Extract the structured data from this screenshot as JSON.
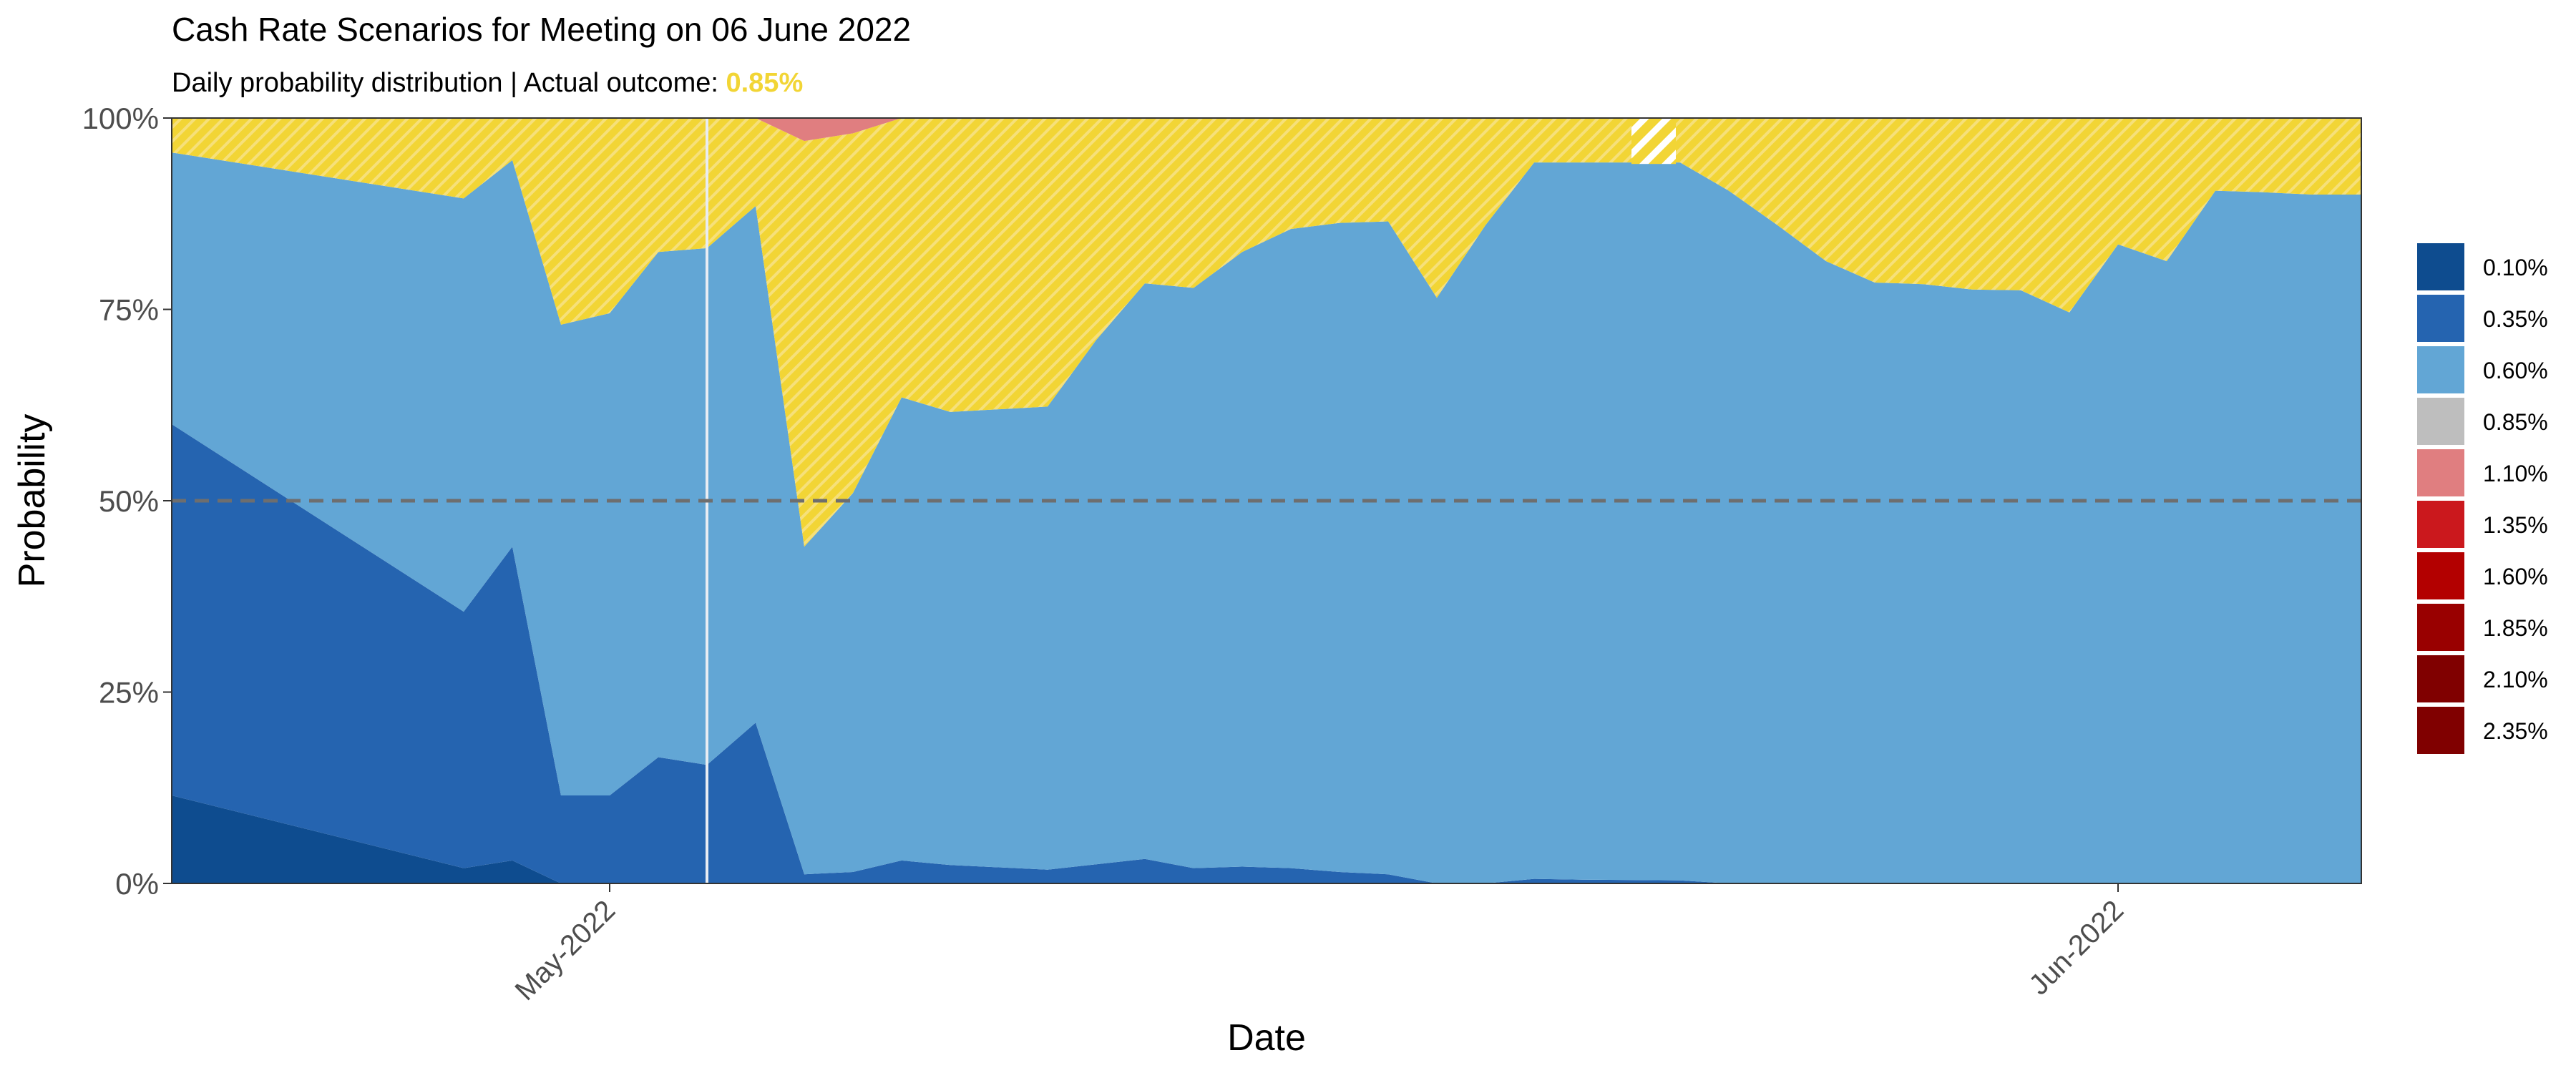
{
  "chart_data": {
    "type": "area",
    "stacked": true,
    "title": "Cash Rate Scenarios for Meeting on 06 June 2022",
    "subtitle_prefix": "Daily probability distribution | Actual outcome: ",
    "subtitle_highlight": "0.85%",
    "highlight_color": "#F2D535",
    "xlabel": "Date",
    "ylabel": "Probability",
    "ylim": [
      0,
      1
    ],
    "xlim": [
      "2022-04-22",
      "2022-06-06"
    ],
    "y_ticks": [
      {
        "value": 0,
        "label": "0%"
      },
      {
        "value": 0.25,
        "label": "25%"
      },
      {
        "value": 0.5,
        "label": "50%"
      },
      {
        "value": 0.75,
        "label": "75%"
      },
      {
        "value": 1,
        "label": "100%"
      }
    ],
    "x_ticks": [
      {
        "date": "2022-05-01",
        "label": "May-2022"
      },
      {
        "date": "2022-06-01",
        "label": "Jun-2022"
      }
    ],
    "reference_line_y": 0.5,
    "event_line_date": "2022-05-03",
    "legend_position": "right",
    "legend": [
      {
        "label": "0.10%",
        "color": "#0E4C8F"
      },
      {
        "label": "0.35%",
        "color": "#2564B0"
      },
      {
        "label": "0.60%",
        "color": "#62A6D5"
      },
      {
        "label": "0.85%",
        "color": "#BEBEBE"
      },
      {
        "label": "1.10%",
        "color": "#E07E80"
      },
      {
        "label": "1.35%",
        "color": "#CB181D"
      },
      {
        "label": "1.60%",
        "color": "#B30000"
      },
      {
        "label": "1.85%",
        "color": "#990000"
      },
      {
        "label": "2.10%",
        "color": "#800000"
      },
      {
        "label": "2.35%",
        "color": "#800000"
      }
    ],
    "dates": [
      "2022-04-22",
      "2022-04-28",
      "2022-04-29",
      "2022-04-30",
      "2022-05-01",
      "2022-05-02",
      "2022-05-03",
      "2022-05-04",
      "2022-05-05",
      "2022-05-06",
      "2022-05-07",
      "2022-05-08",
      "2022-05-10",
      "2022-05-11",
      "2022-05-12",
      "2022-05-13",
      "2022-05-14",
      "2022-05-15",
      "2022-05-16",
      "2022-05-17",
      "2022-05-18",
      "2022-05-19",
      "2022-05-20",
      "2022-05-21",
      "2022-05-23",
      "2022-05-24",
      "2022-05-25",
      "2022-05-26",
      "2022-05-27",
      "2022-05-28",
      "2022-05-29",
      "2022-05-30",
      "2022-05-31",
      "2022-06-01",
      "2022-06-02",
      "2022-06-03",
      "2022-06-04",
      "2022-06-05",
      "2022-06-06"
    ],
    "series": [
      {
        "name": "0.10%",
        "color": "#0E4C8F",
        "values": [
          0.115,
          0.02,
          0.03,
          0.0,
          0.0,
          0.0,
          0.0,
          0.0,
          0.0,
          0.0,
          0.0,
          0.0,
          0.0,
          0.0,
          0.0,
          0.0,
          0.0,
          0.0,
          0.0,
          0.0,
          0.0,
          0.0,
          0.0,
          0.0,
          0.0,
          0.0,
          0.0,
          0.0,
          0.0,
          0.0,
          0.0,
          0.0,
          0.0,
          0.0,
          0.0,
          0.0,
          0.0,
          0.0,
          0.0
        ]
      },
      {
        "name": "0.35%",
        "color": "#2564B0",
        "values": [
          0.485,
          0.335,
          0.41,
          0.115,
          0.115,
          0.165,
          0.155,
          0.21,
          0.012,
          0.015,
          0.03,
          0.024,
          0.018,
          0.025,
          0.032,
          0.02,
          0.022,
          0.02,
          0.015,
          0.012,
          0.0,
          0.0,
          0.006,
          0.005,
          0.004,
          0.0,
          0.0,
          0.0,
          0.0,
          0.0,
          0.0,
          0.0,
          0.0,
          0.0,
          0.0,
          0.0,
          0.0,
          0.0,
          0.0
        ]
      },
      {
        "name": "0.60%",
        "color": "#62A6D5",
        "values": [
          0.355,
          0.54,
          0.505,
          0.615,
          0.63,
          0.66,
          0.675,
          0.675,
          0.428,
          0.495,
          0.605,
          0.592,
          0.605,
          0.685,
          0.752,
          0.758,
          0.803,
          0.835,
          0.848,
          0.853,
          0.765,
          0.86,
          0.936,
          0.937,
          0.938,
          0.905,
          0.86,
          0.813,
          0.785,
          0.783,
          0.776,
          0.775,
          0.746,
          0.835,
          0.813,
          0.905,
          0.903,
          0.9,
          0.9
        ]
      },
      {
        "name": "0.85%",
        "color": "#BEBEBE",
        "pattern": "hatch-yellow",
        "values": [
          0.045,
          0.105,
          0.055,
          0.27,
          0.255,
          0.175,
          0.17,
          0.115,
          0.53,
          0.47,
          0.365,
          0.384,
          0.377,
          0.29,
          0.216,
          0.222,
          0.175,
          0.145,
          0.137,
          0.135,
          0.235,
          0.14,
          0.058,
          0.058,
          0.058,
          0.095,
          0.14,
          0.187,
          0.215,
          0.217,
          0.224,
          0.225,
          0.254,
          0.165,
          0.187,
          0.095,
          0.097,
          0.1,
          0.1
        ]
      },
      {
        "name": "1.10%",
        "color": "#E07E80",
        "values": [
          0.0,
          0.0,
          0.0,
          0.0,
          0.0,
          0.0,
          0.0,
          0.0,
          0.03,
          0.02,
          0.0,
          0.0,
          0.0,
          0.0,
          0.0,
          0.0,
          0.0,
          0.0,
          0.0,
          0.0,
          0.0,
          0.0,
          0.0,
          0.0,
          0.0,
          0.0,
          0.0,
          0.0,
          0.0,
          0.0,
          0.0,
          0.0,
          0.0,
          0.0,
          0.0,
          0.0,
          0.0,
          0.0,
          0.0
        ]
      }
    ]
  }
}
